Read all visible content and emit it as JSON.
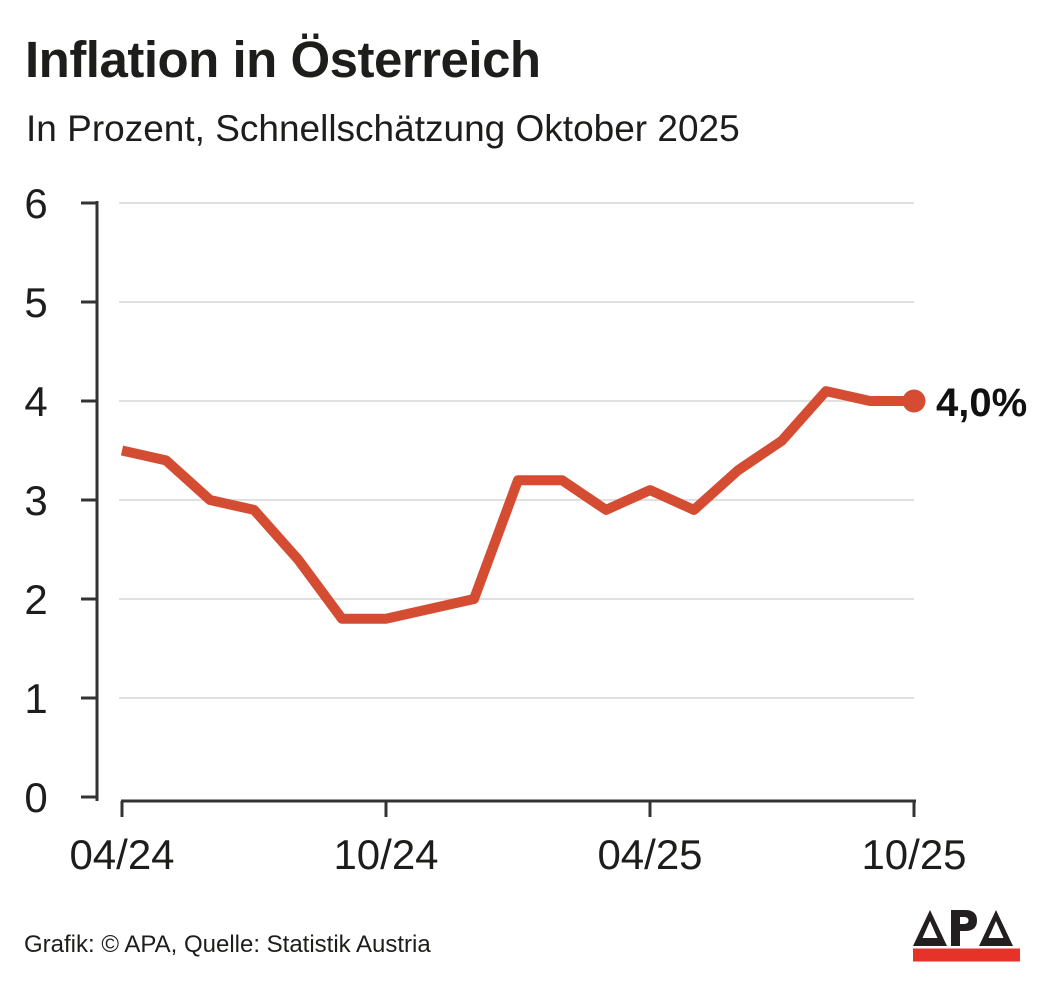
{
  "header": {
    "title": "Inflation in Österreich",
    "subtitle": "In Prozent, Schnellschätzung Oktober 2025"
  },
  "annotation": {
    "end_label": "4,0%"
  },
  "footer": {
    "credit": "Grafik: © APA, Quelle: Statistik Austria",
    "logo_text": "APA"
  },
  "colors": {
    "line": "#d44d33",
    "grid": "#e0e0e0",
    "axis": "#333333",
    "text": "#1d1d1b",
    "logo_black": "#231f20",
    "logo_red": "#e63329"
  },
  "chart_data": {
    "type": "line",
    "title": "Inflation in Österreich",
    "subtitle": "In Prozent, Schnellschätzung Oktober 2025",
    "x": [
      "04/24",
      "05/24",
      "06/24",
      "07/24",
      "08/24",
      "09/24",
      "10/24",
      "11/24",
      "12/24",
      "01/25",
      "02/25",
      "03/25",
      "04/25",
      "05/25",
      "06/25",
      "07/25",
      "08/25",
      "09/25",
      "10/25"
    ],
    "values": [
      3.5,
      3.4,
      3.0,
      2.9,
      2.4,
      1.8,
      1.8,
      1.9,
      2.0,
      3.2,
      3.2,
      2.9,
      3.1,
      2.9,
      3.3,
      3.6,
      4.1,
      4.0,
      4.0
    ],
    "xticks": [
      "04/24",
      "10/24",
      "04/25",
      "10/25"
    ],
    "yticks": [
      0,
      1,
      2,
      3,
      4,
      5,
      6
    ],
    "ylim": [
      0,
      6
    ],
    "xlabel": "",
    "ylabel": "",
    "grid": "horizontal-only",
    "legend": "none",
    "end_point_label": "4,0%"
  }
}
